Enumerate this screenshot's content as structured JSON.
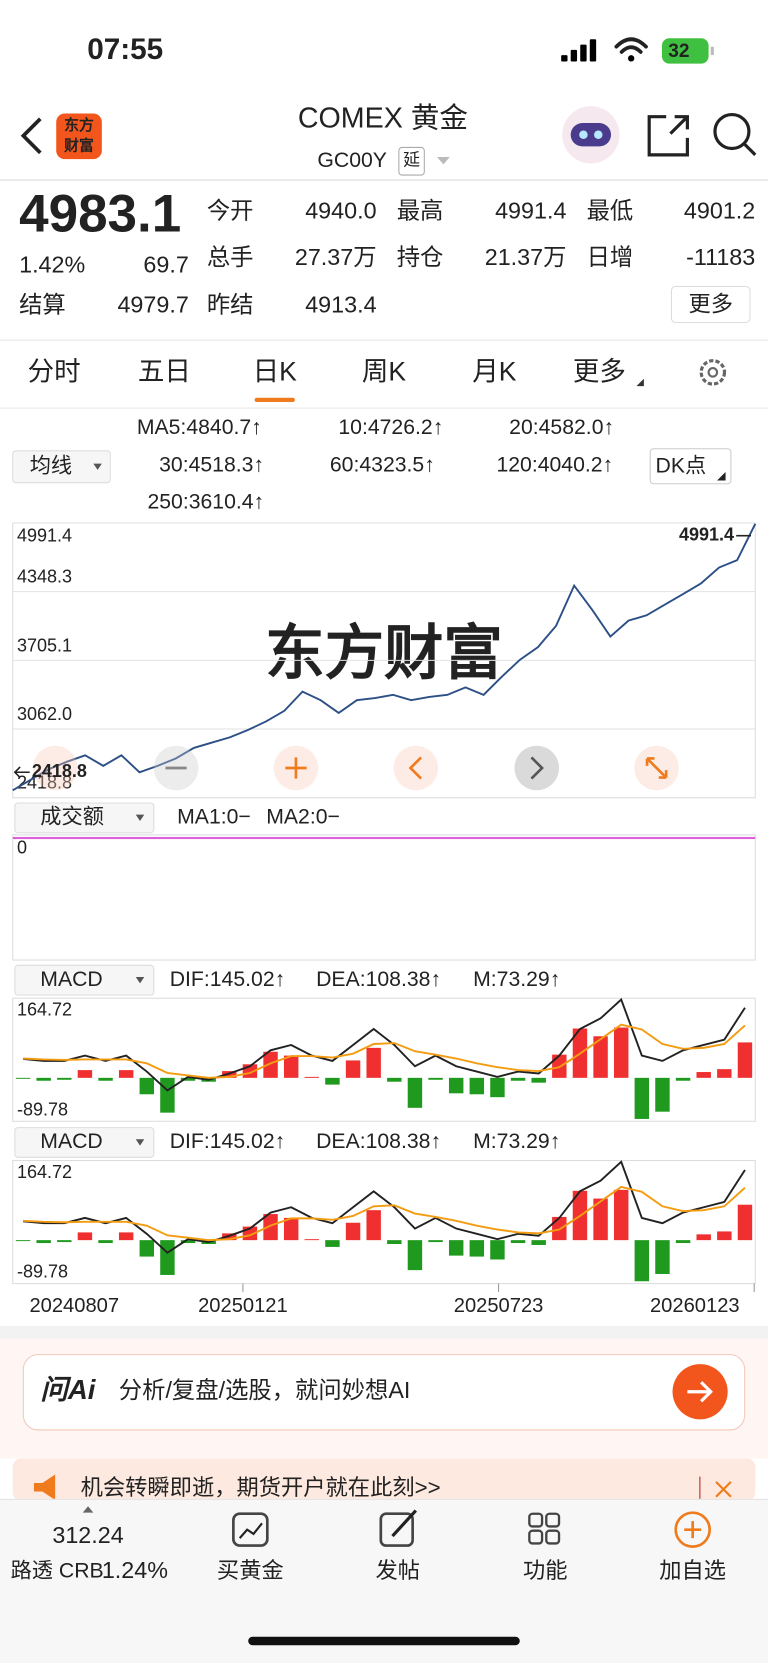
{
  "status_bar": {
    "time": "07:55",
    "battery": "32"
  },
  "header": {
    "logo": [
      "东方",
      "财富"
    ],
    "title": "COMEX 黄金",
    "code": "GC00Y",
    "delay_tag": "延"
  },
  "quote": {
    "price": "4983.1",
    "change_pct": "1.42%",
    "change": "69.7",
    "fields": [
      {
        "label": "今开",
        "value": "4940.0",
        "color": "#e5322d"
      },
      {
        "label": "最高",
        "value": "4991.4",
        "color": "#e5322d"
      },
      {
        "label": "最低",
        "value": "4901.2",
        "color": "#1a9a3a"
      },
      {
        "label": "总手",
        "value": "27.37万",
        "color": "#222222"
      },
      {
        "label": "持仓",
        "value": "21.37万",
        "color": "#222222"
      },
      {
        "label": "日增",
        "value": "-11183",
        "color": "#222222"
      },
      {
        "label": "结算",
        "value": "4979.7",
        "color": "#222222"
      },
      {
        "label": "昨结",
        "value": "4913.4",
        "color": "#222222"
      }
    ],
    "more": "更多"
  },
  "tabs": {
    "items": [
      "分时",
      "五日",
      "日K",
      "周K",
      "月K",
      "更多"
    ],
    "active": 2
  },
  "ma": {
    "selector": "均线",
    "items": [
      {
        "text": "MA5:4840.7↑",
        "color": "#222222"
      },
      {
        "text": "10:4726.2↑",
        "color": "#f39c12"
      },
      {
        "text": "20:4582.0↑",
        "color": "#d12ad1"
      },
      {
        "text": "30:4518.3↑",
        "color": "#1a9a3a"
      },
      {
        "text": "60:4323.5↑",
        "color": "#777777"
      },
      {
        "text": "120:4040.2↑",
        "color": "#2a2aa8"
      },
      {
        "text": "250:3610.4↑",
        "color": "#5fb4ea"
      }
    ],
    "dk": "DK点"
  },
  "watermark": "东方财富",
  "chart_data": [
    {
      "type": "line",
      "color": "#2c4f86",
      "values": [
        2488,
        2588,
        2687,
        2756,
        2816,
        2717,
        2816,
        2657,
        2717,
        2786,
        2885,
        2935,
        2985,
        3054,
        3134,
        3233,
        3412,
        3332,
        3213,
        3332,
        3352,
        3382,
        3332,
        3362,
        3382,
        3452,
        3382,
        3551,
        3710,
        3829,
        4028,
        4405,
        4177,
        3928,
        4077,
        4127,
        4226,
        4325,
        4425,
        4574,
        4643,
        4983.1
      ],
      "ylim": [
        2418.8,
        4991.4
      ],
      "yticks": [
        4991.4,
        4348.3,
        3705.1,
        {
          "value": 3062,
          "label": "3062.0"
        },
        2418.8
      ],
      "grid": true,
      "annotations": {
        "max": 4991.4,
        "min": 2418.8
      }
    },
    {
      "type": "macd",
      "selector": "MACD",
      "ylim": [
        -89.78,
        164.72
      ],
      "yticks": [
        164.72,
        -89.78
      ],
      "series": [
        {
          "name": "DIF:145.02↑",
          "color": "#222222",
          "values": [
            39,
            35,
            35,
            46,
            35,
            46,
            13,
            -26,
            2,
            -4,
            9,
            24,
            57,
            68,
            46,
            35,
            68,
            101,
            68,
            24,
            46,
            24,
            13,
            2,
            13,
            9,
            46,
            101,
            123,
            162,
            46,
            35,
            57,
            68,
            79,
            145.02
          ]
        },
        {
          "name": "DEA:108.38↑",
          "color": "#f39c12",
          "values": [
            40,
            38,
            37,
            38,
            38,
            38,
            30,
            10,
            5,
            0,
            2,
            10,
            30,
            45,
            45,
            42,
            50,
            70,
            72,
            55,
            48,
            40,
            30,
            22,
            16,
            14,
            22,
            50,
            80,
            110,
            100,
            70,
            60,
            62,
            70,
            108.38
          ]
        },
        {
          "name": "M:73.29↑",
          "color": "#d12ad1",
          "values": [
            -2,
            -6,
            -4,
            16,
            -6,
            16,
            -34,
            -72,
            -6,
            -8,
            14,
            28,
            54,
            46,
            2,
            -14,
            36,
            62,
            -8,
            -62,
            -4,
            -32,
            -34,
            -40,
            -6,
            -10,
            48,
            102,
            86,
            104,
            -85,
            -70,
            -6,
            12,
            18,
            73.29
          ]
        }
      ],
      "up_color": "#f03030",
      "down_color": "#1f9a1f",
      "xtick_labels": [
        "20240807",
        "20250121",
        "20250723",
        "20260123"
      ]
    }
  ],
  "volume": {
    "selector": "成交额",
    "ma1": "MA1:0−",
    "ma2": "MA2:0−",
    "zero": "0"
  },
  "ai": {
    "brand": "问Ai",
    "placeholder": "分析/复盘/选股，就问妙想AI"
  },
  "banner": {
    "text": "机会转瞬即逝，期货开户就在此刻>>"
  },
  "nav": {
    "index_value": "312.24",
    "index_name": "路透 CRB",
    "index_change": "1.24%",
    "items": [
      "买黄金",
      "发帖",
      "功能",
      "加自选"
    ]
  }
}
